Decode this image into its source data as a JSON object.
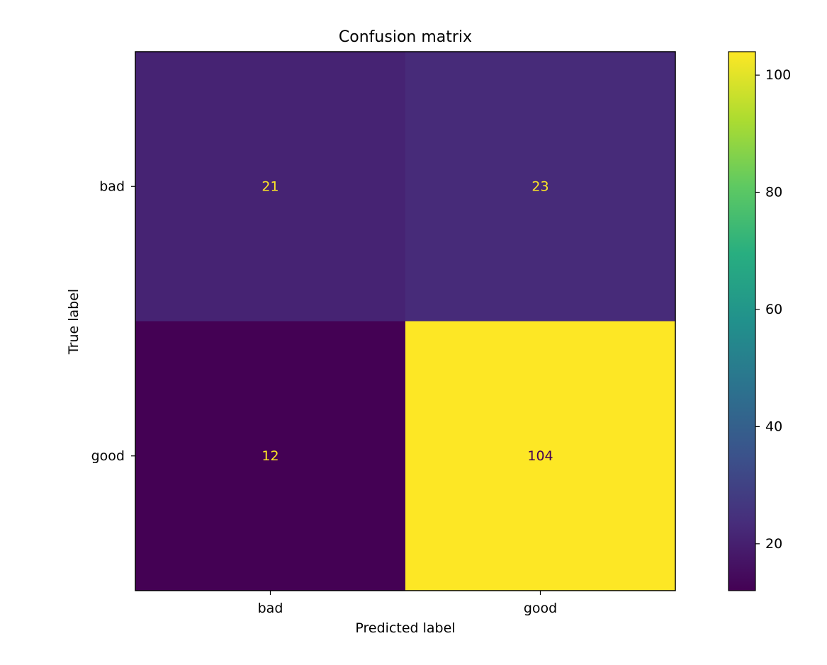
{
  "chart_data": {
    "type": "heatmap",
    "title": "Confusion matrix",
    "xlabel": "Predicted label",
    "ylabel": "True label",
    "x_categories": [
      "bad",
      "good"
    ],
    "y_categories": [
      "bad",
      "good"
    ],
    "values": [
      [
        21,
        23
      ],
      [
        12,
        104
      ]
    ],
    "colormap": "viridis",
    "colorbar": {
      "range": [
        12,
        104
      ],
      "ticks": [
        20,
        40,
        60,
        80,
        100
      ]
    },
    "grid": false,
    "colors": {
      "low": "#440154",
      "high": "#fde725",
      "light_text": "#fde725",
      "dark_text": "#440154"
    }
  }
}
